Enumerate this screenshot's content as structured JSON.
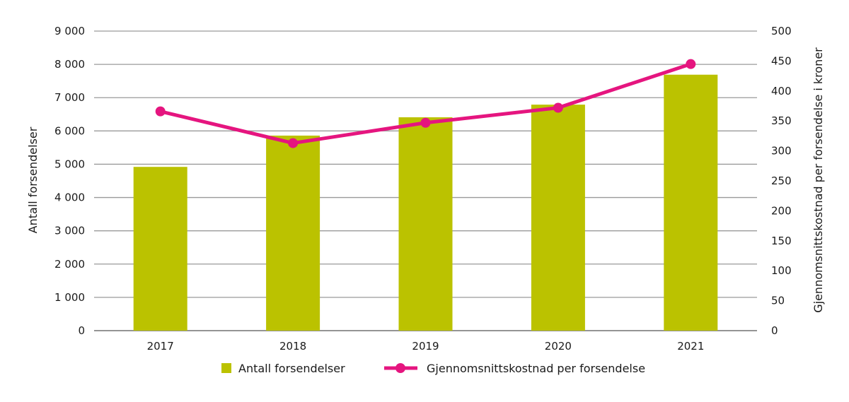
{
  "chart_data": {
    "type": "bar+line",
    "categories": [
      "2017",
      "2018",
      "2019",
      "2020",
      "2021"
    ],
    "series": [
      {
        "name": "Antall forsendelser",
        "type": "bar",
        "axis": "left",
        "color": "#bbc200",
        "values": [
          4920,
          5860,
          6410,
          6790,
          7690
        ]
      },
      {
        "name": "Gjennomsnittskostnad per forsendelse",
        "type": "line",
        "axis": "right",
        "color": "#e5157f",
        "values": [
          366,
          313,
          347,
          372,
          445
        ]
      }
    ],
    "ylabel": "Antall forsendelser",
    "ylabel_right": "Gjennomsnittskostnad per forsendelse i kroner",
    "ylim": [
      0,
      9000
    ],
    "ylim_right": [
      0,
      500
    ],
    "yticks": [
      "0",
      "1 000",
      "2 000",
      "3 000",
      "4 000",
      "5 000",
      "6 000",
      "7 000",
      "8 000",
      "9 000"
    ],
    "yticks_right": [
      "0",
      "50",
      "100",
      "150",
      "200",
      "250",
      "300",
      "350",
      "400",
      "450",
      "500"
    ],
    "grid": true,
    "legend": "bottom"
  }
}
